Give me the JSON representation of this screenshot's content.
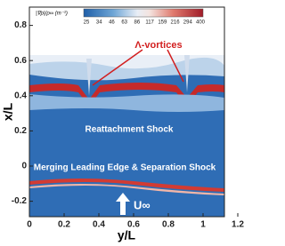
{
  "colorbar": {
    "title": "|∇ρ|/ρ∞ (m⁻¹)",
    "labels": [
      25,
      34,
      46,
      63,
      86,
      117,
      159,
      216,
      294,
      400
    ]
  },
  "axes": {
    "x_label": "y/L",
    "y_label": "x/L",
    "x_ticks": [
      0,
      0.2,
      0.4,
      0.6,
      0.8,
      1,
      1.2
    ],
    "y_ticks": [
      -0.2,
      0,
      0.2,
      0.4,
      0.6,
      0.8
    ]
  },
  "annotations": {
    "vortices": "Λ-vortices",
    "reattachment": "Reattachment Shock",
    "merging": "Merging Leading Edge & Separation Shock",
    "freestream": "U∞"
  }
}
